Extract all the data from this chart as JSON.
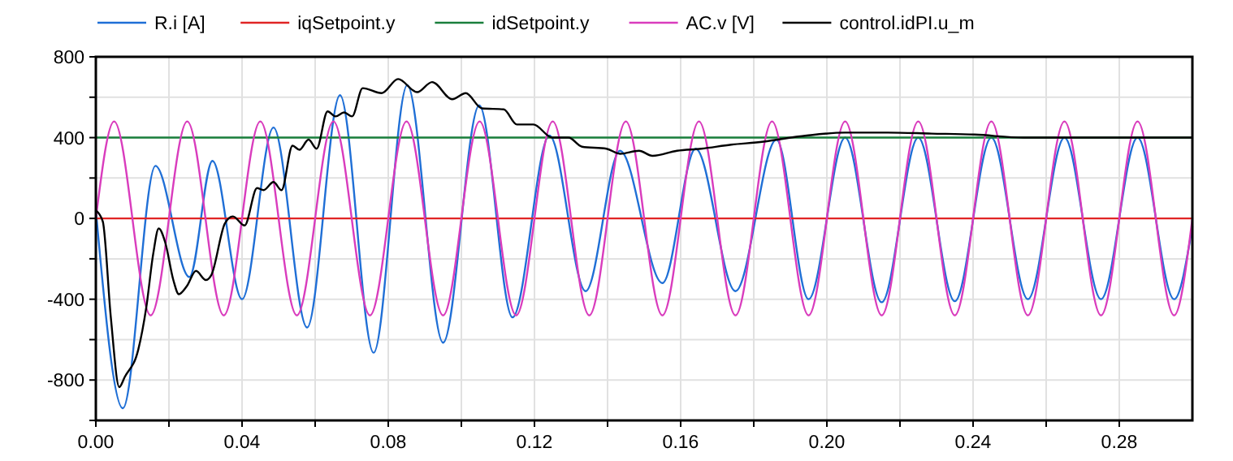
{
  "chart_data": {
    "type": "line",
    "legend": "top",
    "grid": true,
    "marker": "none",
    "line_style": "solid",
    "xlim": [
      0,
      0.3
    ],
    "xticks": [
      {
        "value": 0,
        "label": "0.00"
      },
      {
        "value": 0.02,
        "label": null
      },
      {
        "value": 0.04,
        "label": "0.04"
      },
      {
        "value": 0.06,
        "label": null
      },
      {
        "value": 0.08,
        "label": "0.08"
      },
      {
        "value": 0.1,
        "label": null
      },
      {
        "value": 0.12,
        "label": "0.12"
      },
      {
        "value": 0.14,
        "label": null
      },
      {
        "value": 0.16,
        "label": "0.16"
      },
      {
        "value": 0.18,
        "label": null
      },
      {
        "value": 0.2,
        "label": "0.20"
      },
      {
        "value": 0.22,
        "label": null
      },
      {
        "value": 0.24,
        "label": "0.24"
      },
      {
        "value": 0.26,
        "label": null
      },
      {
        "value": 0.28,
        "label": "0.28"
      }
    ],
    "ylim": [
      -1000,
      800
    ],
    "yticks": [
      {
        "value": -1000,
        "label": null
      },
      -800,
      {
        "value": -600,
        "label": null
      },
      -400,
      {
        "value": -200,
        "label": null
      },
      0,
      {
        "value": 200,
        "label": null
      },
      400,
      {
        "value": 600,
        "label": null
      },
      800
    ],
    "series": [
      {
        "name": "R.i [A]",
        "color": "#1f6fd6",
        "x": [
          0,
          0.0074,
          0.0163,
          0.0256,
          0.0319,
          0.04,
          0.0486,
          0.0578,
          0.0668,
          0.076,
          0.0852,
          0.095,
          0.1049,
          0.114,
          0.1241,
          0.134,
          0.1434,
          0.155,
          0.1641,
          0.175,
          0.1862,
          0.195,
          0.205,
          0.215,
          0.225,
          0.235,
          0.245,
          0.255,
          0.265,
          0.275,
          0.285,
          0.295,
          0.3
        ],
        "values": [
          40,
          -940,
          260,
          -290,
          285,
          -400,
          450,
          -540,
          610,
          -665,
          660,
          -615,
          560,
          -490,
          410,
          -360,
          335,
          -320,
          345,
          -360,
          390,
          -400,
          400,
          -415,
          400,
          -410,
          400,
          -400,
          400,
          -400,
          400,
          -400,
          -40
        ]
      },
      {
        "name": "iqSetpoint.y",
        "color": "#e02424",
        "x": [
          0,
          0.3
        ],
        "values": [
          0,
          0
        ]
      },
      {
        "name": "idSetpoint.y",
        "color": "#1a7f3c",
        "x": [
          0,
          0.3
        ],
        "values": [
          400,
          400
        ]
      },
      {
        "name": "AC.v [V]",
        "color": "#d93cbd",
        "x": [
          0,
          0.005,
          0.015,
          0.025,
          0.035,
          0.045,
          0.055,
          0.065,
          0.075,
          0.085,
          0.095,
          0.105,
          0.115,
          0.125,
          0.135,
          0.145,
          0.155,
          0.165,
          0.175,
          0.185,
          0.195,
          0.205,
          0.215,
          0.225,
          0.235,
          0.245,
          0.255,
          0.265,
          0.275,
          0.285,
          0.295,
          0.3
        ],
        "values": [
          0,
          480,
          -480,
          480,
          -480,
          480,
          -480,
          480,
          -480,
          480,
          -480,
          480,
          -480,
          480,
          -480,
          480,
          -480,
          480,
          -480,
          480,
          -480,
          480,
          -480,
          480,
          -480,
          480,
          -480,
          480,
          -480,
          480,
          -480,
          0
        ]
      },
      {
        "name": "control.idPI.u_m",
        "color": "#000000",
        "x": [
          0,
          0.0019,
          0.0041,
          0.0064,
          0.0079,
          0.0116,
          0.0138,
          0.0157,
          0.0172,
          0.019,
          0.0212,
          0.0227,
          0.0249,
          0.0274,
          0.0301,
          0.0316,
          0.0353,
          0.0375,
          0.0407,
          0.0441,
          0.0459,
          0.0486,
          0.0508,
          0.0538,
          0.0557,
          0.0582,
          0.0604,
          0.0634,
          0.0656,
          0.0679,
          0.0701,
          0.073,
          0.0782,
          0.0827,
          0.0879,
          0.092,
          0.0975,
          0.1012,
          0.1056,
          0.1116,
          0.1152,
          0.1197,
          0.1249,
          0.1293,
          0.133,
          0.1397,
          0.1434,
          0.1486,
          0.1523,
          0.159,
          0.1656,
          0.1738,
          0.1827,
          0.1864,
          0.1945,
          0.2049,
          0.2167,
          0.2286,
          0.2404,
          0.2538,
          0.3
        ],
        "values": [
          40,
          -15,
          -490,
          -835,
          -785,
          -650,
          -440,
          -175,
          -50,
          -120,
          -305,
          -375,
          -335,
          -260,
          -305,
          -280,
          -25,
          10,
          -35,
          150,
          140,
          180,
          140,
          360,
          340,
          390,
          345,
          530,
          505,
          525,
          505,
          645,
          620,
          690,
          625,
          675,
          590,
          620,
          545,
          540,
          465,
          465,
          400,
          400,
          355,
          345,
          320,
          335,
          310,
          335,
          345,
          365,
          380,
          390,
          410,
          425,
          425,
          420,
          415,
          400,
          400
        ]
      }
    ]
  }
}
